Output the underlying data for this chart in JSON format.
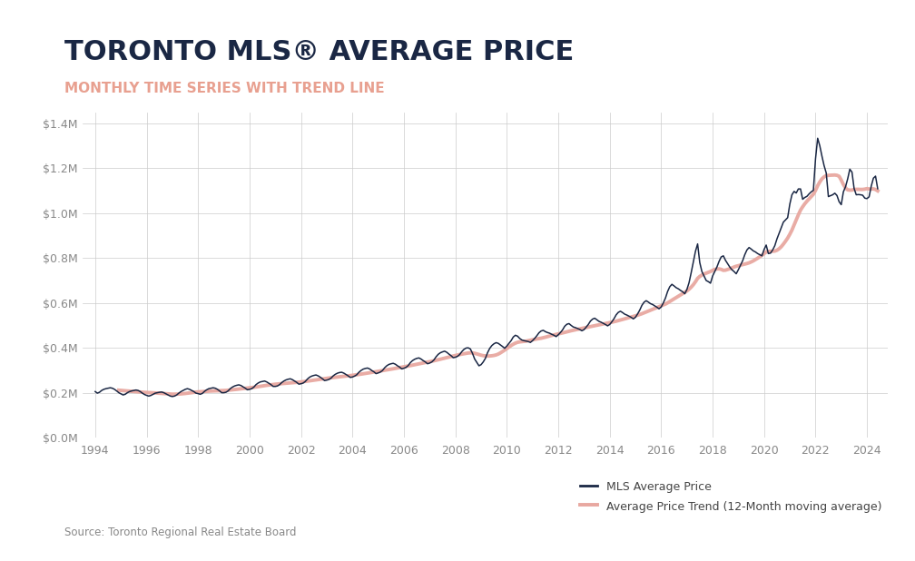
{
  "title": "TORONTO MLS® AVERAGE PRICE",
  "subtitle": "MONTHLY TIME SERIES WITH TREND LINE",
  "title_color": "#1a2744",
  "subtitle_color": "#e8a090",
  "background_color": "#ffffff",
  "line_color": "#1a2744",
  "trend_color": "#e8a8a0",
  "ytick_vals": [
    0,
    200000,
    400000,
    600000,
    800000,
    1000000,
    1200000,
    1400000
  ],
  "source_text": "Source: Toronto Regional Real Estate Board",
  "legend_label_1": "MLS Average Price",
  "legend_label_2": "Average Price Trend (12-Month moving average)",
  "monthly_data": [
    [
      1994.0,
      205000
    ],
    [
      1994.083,
      198000
    ],
    [
      1994.167,
      202000
    ],
    [
      1994.25,
      210000
    ],
    [
      1994.333,
      215000
    ],
    [
      1994.417,
      218000
    ],
    [
      1994.5,
      220000
    ],
    [
      1994.583,
      222000
    ],
    [
      1994.667,
      220000
    ],
    [
      1994.75,
      215000
    ],
    [
      1994.833,
      208000
    ],
    [
      1994.917,
      200000
    ],
    [
      1995.0,
      195000
    ],
    [
      1995.083,
      190000
    ],
    [
      1995.167,
      193000
    ],
    [
      1995.25,
      200000
    ],
    [
      1995.333,
      205000
    ],
    [
      1995.417,
      208000
    ],
    [
      1995.5,
      210000
    ],
    [
      1995.583,
      212000
    ],
    [
      1995.667,
      210000
    ],
    [
      1995.75,
      205000
    ],
    [
      1995.833,
      198000
    ],
    [
      1995.917,
      192000
    ],
    [
      1996.0,
      188000
    ],
    [
      1996.083,
      185000
    ],
    [
      1996.167,
      188000
    ],
    [
      1996.25,
      193000
    ],
    [
      1996.333,
      198000
    ],
    [
      1996.417,
      200000
    ],
    [
      1996.5,
      202000
    ],
    [
      1996.583,
      203000
    ],
    [
      1996.667,
      200000
    ],
    [
      1996.75,
      195000
    ],
    [
      1996.833,
      190000
    ],
    [
      1996.917,
      185000
    ],
    [
      1997.0,
      183000
    ],
    [
      1997.083,
      185000
    ],
    [
      1997.167,
      190000
    ],
    [
      1997.25,
      198000
    ],
    [
      1997.333,
      205000
    ],
    [
      1997.417,
      210000
    ],
    [
      1997.5,
      215000
    ],
    [
      1997.583,
      218000
    ],
    [
      1997.667,
      215000
    ],
    [
      1997.75,
      210000
    ],
    [
      1997.833,
      205000
    ],
    [
      1997.917,
      198000
    ],
    [
      1998.0,
      196000
    ],
    [
      1998.083,
      193000
    ],
    [
      1998.167,
      197000
    ],
    [
      1998.25,
      206000
    ],
    [
      1998.333,
      213000
    ],
    [
      1998.417,
      218000
    ],
    [
      1998.5,
      220000
    ],
    [
      1998.583,
      222000
    ],
    [
      1998.667,
      220000
    ],
    [
      1998.75,
      215000
    ],
    [
      1998.833,
      208000
    ],
    [
      1998.917,
      200000
    ],
    [
      1999.0,
      200000
    ],
    [
      1999.083,
      202000
    ],
    [
      1999.167,
      208000
    ],
    [
      1999.25,
      218000
    ],
    [
      1999.333,
      225000
    ],
    [
      1999.417,
      230000
    ],
    [
      1999.5,
      233000
    ],
    [
      1999.583,
      235000
    ],
    [
      1999.667,
      232000
    ],
    [
      1999.75,
      226000
    ],
    [
      1999.833,
      220000
    ],
    [
      1999.917,
      213000
    ],
    [
      2000.0,
      215000
    ],
    [
      2000.083,
      218000
    ],
    [
      2000.167,
      225000
    ],
    [
      2000.25,
      236000
    ],
    [
      2000.333,
      243000
    ],
    [
      2000.417,
      248000
    ],
    [
      2000.5,
      250000
    ],
    [
      2000.583,
      252000
    ],
    [
      2000.667,
      248000
    ],
    [
      2000.75,
      242000
    ],
    [
      2000.833,
      236000
    ],
    [
      2000.917,
      228000
    ],
    [
      2001.0,
      228000
    ],
    [
      2001.083,
      230000
    ],
    [
      2001.167,
      236000
    ],
    [
      2001.25,
      245000
    ],
    [
      2001.333,
      252000
    ],
    [
      2001.417,
      257000
    ],
    [
      2001.5,
      260000
    ],
    [
      2001.583,
      262000
    ],
    [
      2001.667,
      258000
    ],
    [
      2001.75,
      252000
    ],
    [
      2001.833,
      246000
    ],
    [
      2001.917,
      238000
    ],
    [
      2002.0,
      240000
    ],
    [
      2002.083,
      243000
    ],
    [
      2002.167,
      250000
    ],
    [
      2002.25,
      261000
    ],
    [
      2002.333,
      269000
    ],
    [
      2002.417,
      274000
    ],
    [
      2002.5,
      277000
    ],
    [
      2002.583,
      279000
    ],
    [
      2002.667,
      275000
    ],
    [
      2002.75,
      269000
    ],
    [
      2002.833,
      262000
    ],
    [
      2002.917,
      254000
    ],
    [
      2003.0,
      256000
    ],
    [
      2003.083,
      259000
    ],
    [
      2003.167,
      265000
    ],
    [
      2003.25,
      275000
    ],
    [
      2003.333,
      282000
    ],
    [
      2003.417,
      287000
    ],
    [
      2003.5,
      290000
    ],
    [
      2003.583,
      291000
    ],
    [
      2003.667,
      287000
    ],
    [
      2003.75,
      281000
    ],
    [
      2003.833,
      275000
    ],
    [
      2003.917,
      268000
    ],
    [
      2004.0,
      270000
    ],
    [
      2004.083,
      274000
    ],
    [
      2004.167,
      280000
    ],
    [
      2004.25,
      291000
    ],
    [
      2004.333,
      299000
    ],
    [
      2004.417,
      305000
    ],
    [
      2004.5,
      308000
    ],
    [
      2004.583,
      310000
    ],
    [
      2004.667,
      306000
    ],
    [
      2004.75,
      299000
    ],
    [
      2004.833,
      293000
    ],
    [
      2004.917,
      285000
    ],
    [
      2005.0,
      288000
    ],
    [
      2005.083,
      292000
    ],
    [
      2005.167,
      299000
    ],
    [
      2005.25,
      311000
    ],
    [
      2005.333,
      320000
    ],
    [
      2005.417,
      326000
    ],
    [
      2005.5,
      329000
    ],
    [
      2005.583,
      331000
    ],
    [
      2005.667,
      327000
    ],
    [
      2005.75,
      320000
    ],
    [
      2005.833,
      314000
    ],
    [
      2005.917,
      306000
    ],
    [
      2006.0,
      309000
    ],
    [
      2006.083,
      313000
    ],
    [
      2006.167,
      321000
    ],
    [
      2006.25,
      334000
    ],
    [
      2006.333,
      343000
    ],
    [
      2006.417,
      349000
    ],
    [
      2006.5,
      353000
    ],
    [
      2006.583,
      355000
    ],
    [
      2006.667,
      350000
    ],
    [
      2006.75,
      343000
    ],
    [
      2006.833,
      337000
    ],
    [
      2006.917,
      329000
    ],
    [
      2007.0,
      332000
    ],
    [
      2007.083,
      337000
    ],
    [
      2007.167,
      346000
    ],
    [
      2007.25,
      360000
    ],
    [
      2007.333,
      371000
    ],
    [
      2007.417,
      378000
    ],
    [
      2007.5,
      382000
    ],
    [
      2007.583,
      385000
    ],
    [
      2007.667,
      380000
    ],
    [
      2007.75,
      372000
    ],
    [
      2007.833,
      365000
    ],
    [
      2007.917,
      356000
    ],
    [
      2008.0,
      358000
    ],
    [
      2008.083,
      362000
    ],
    [
      2008.167,
      370000
    ],
    [
      2008.25,
      383000
    ],
    [
      2008.333,
      393000
    ],
    [
      2008.417,
      399000
    ],
    [
      2008.5,
      400000
    ],
    [
      2008.583,
      395000
    ],
    [
      2008.667,
      375000
    ],
    [
      2008.75,
      350000
    ],
    [
      2008.833,
      335000
    ],
    [
      2008.917,
      320000
    ],
    [
      2009.0,
      325000
    ],
    [
      2009.083,
      337000
    ],
    [
      2009.167,
      353000
    ],
    [
      2009.25,
      378000
    ],
    [
      2009.333,
      397000
    ],
    [
      2009.417,
      410000
    ],
    [
      2009.5,
      418000
    ],
    [
      2009.583,
      423000
    ],
    [
      2009.667,
      420000
    ],
    [
      2009.75,
      413000
    ],
    [
      2009.833,
      406000
    ],
    [
      2009.917,
      398000
    ],
    [
      2010.0,
      408000
    ],
    [
      2010.083,
      420000
    ],
    [
      2010.167,
      432000
    ],
    [
      2010.25,
      448000
    ],
    [
      2010.333,
      456000
    ],
    [
      2010.417,
      452000
    ],
    [
      2010.5,
      442000
    ],
    [
      2010.583,
      435000
    ],
    [
      2010.667,
      432000
    ],
    [
      2010.75,
      430000
    ],
    [
      2010.833,
      428000
    ],
    [
      2010.917,
      424000
    ],
    [
      2011.0,
      432000
    ],
    [
      2011.083,
      442000
    ],
    [
      2011.167,
      454000
    ],
    [
      2011.25,
      467000
    ],
    [
      2011.333,
      475000
    ],
    [
      2011.417,
      478000
    ],
    [
      2011.5,
      472000
    ],
    [
      2011.583,
      468000
    ],
    [
      2011.667,
      465000
    ],
    [
      2011.75,
      460000
    ],
    [
      2011.833,
      456000
    ],
    [
      2011.917,
      450000
    ],
    [
      2012.0,
      458000
    ],
    [
      2012.083,
      468000
    ],
    [
      2012.167,
      480000
    ],
    [
      2012.25,
      496000
    ],
    [
      2012.333,
      505000
    ],
    [
      2012.417,
      508000
    ],
    [
      2012.5,
      500000
    ],
    [
      2012.583,
      493000
    ],
    [
      2012.667,
      490000
    ],
    [
      2012.75,
      486000
    ],
    [
      2012.833,
      482000
    ],
    [
      2012.917,
      476000
    ],
    [
      2013.0,
      481000
    ],
    [
      2013.083,
      492000
    ],
    [
      2013.167,
      504000
    ],
    [
      2013.25,
      519000
    ],
    [
      2013.333,
      528000
    ],
    [
      2013.417,
      532000
    ],
    [
      2013.5,
      525000
    ],
    [
      2013.583,
      518000
    ],
    [
      2013.667,
      514000
    ],
    [
      2013.75,
      509000
    ],
    [
      2013.833,
      504000
    ],
    [
      2013.917,
      498000
    ],
    [
      2014.0,
      504000
    ],
    [
      2014.083,
      516000
    ],
    [
      2014.167,
      530000
    ],
    [
      2014.25,
      547000
    ],
    [
      2014.333,
      558000
    ],
    [
      2014.417,
      563000
    ],
    [
      2014.5,
      557000
    ],
    [
      2014.583,
      550000
    ],
    [
      2014.667,
      546000
    ],
    [
      2014.75,
      541000
    ],
    [
      2014.833,
      536000
    ],
    [
      2014.917,
      529000
    ],
    [
      2015.0,
      536000
    ],
    [
      2015.083,
      551000
    ],
    [
      2015.167,
      568000
    ],
    [
      2015.25,
      589000
    ],
    [
      2015.333,
      603000
    ],
    [
      2015.417,
      610000
    ],
    [
      2015.5,
      604000
    ],
    [
      2015.583,
      597000
    ],
    [
      2015.667,
      593000
    ],
    [
      2015.75,
      587000
    ],
    [
      2015.833,
      581000
    ],
    [
      2015.917,
      574000
    ],
    [
      2016.0,
      582000
    ],
    [
      2016.083,
      600000
    ],
    [
      2016.167,
      622000
    ],
    [
      2016.25,
      651000
    ],
    [
      2016.333,
      672000
    ],
    [
      2016.417,
      683000
    ],
    [
      2016.5,
      676000
    ],
    [
      2016.583,
      668000
    ],
    [
      2016.667,
      663000
    ],
    [
      2016.75,
      656000
    ],
    [
      2016.833,
      650000
    ],
    [
      2016.917,
      641000
    ],
    [
      2017.0,
      660000
    ],
    [
      2017.083,
      690000
    ],
    [
      2017.167,
      735000
    ],
    [
      2017.25,
      782000
    ],
    [
      2017.333,
      830000
    ],
    [
      2017.417,
      863000
    ],
    [
      2017.5,
      780000
    ],
    [
      2017.583,
      740000
    ],
    [
      2017.667,
      720000
    ],
    [
      2017.75,
      700000
    ],
    [
      2017.833,
      695000
    ],
    [
      2017.917,
      688000
    ],
    [
      2018.0,
      720000
    ],
    [
      2018.083,
      740000
    ],
    [
      2018.167,
      760000
    ],
    [
      2018.25,
      785000
    ],
    [
      2018.333,
      805000
    ],
    [
      2018.417,
      810000
    ],
    [
      2018.5,
      790000
    ],
    [
      2018.583,
      775000
    ],
    [
      2018.667,
      760000
    ],
    [
      2018.75,
      748000
    ],
    [
      2018.833,
      740000
    ],
    [
      2018.917,
      730000
    ],
    [
      2019.0,
      748000
    ],
    [
      2019.083,
      768000
    ],
    [
      2019.167,
      788000
    ],
    [
      2019.25,
      815000
    ],
    [
      2019.333,
      836000
    ],
    [
      2019.417,
      847000
    ],
    [
      2019.5,
      840000
    ],
    [
      2019.583,
      832000
    ],
    [
      2019.667,
      827000
    ],
    [
      2019.75,
      820000
    ],
    [
      2019.833,
      815000
    ],
    [
      2019.917,
      810000
    ],
    [
      2020.0,
      838000
    ],
    [
      2020.083,
      858000
    ],
    [
      2020.167,
      820000
    ],
    [
      2020.25,
      822000
    ],
    [
      2020.333,
      836000
    ],
    [
      2020.417,
      855000
    ],
    [
      2020.5,
      885000
    ],
    [
      2020.583,
      910000
    ],
    [
      2020.667,
      935000
    ],
    [
      2020.75,
      960000
    ],
    [
      2020.833,
      970000
    ],
    [
      2020.917,
      980000
    ],
    [
      2021.0,
      1040000
    ],
    [
      2021.083,
      1082000
    ],
    [
      2021.167,
      1097000
    ],
    [
      2021.25,
      1090000
    ],
    [
      2021.333,
      1108000
    ],
    [
      2021.417,
      1108000
    ],
    [
      2021.5,
      1062000
    ],
    [
      2021.583,
      1070000
    ],
    [
      2021.667,
      1075000
    ],
    [
      2021.75,
      1086000
    ],
    [
      2021.833,
      1095000
    ],
    [
      2021.917,
      1102000
    ],
    [
      2022.0,
      1242000
    ],
    [
      2022.083,
      1334000
    ],
    [
      2022.167,
      1300000
    ],
    [
      2022.25,
      1254000
    ],
    [
      2022.333,
      1212000
    ],
    [
      2022.417,
      1179000
    ],
    [
      2022.5,
      1074000
    ],
    [
      2022.583,
      1078000
    ],
    [
      2022.667,
      1082000
    ],
    [
      2022.75,
      1089000
    ],
    [
      2022.833,
      1079000
    ],
    [
      2022.917,
      1051000
    ],
    [
      2023.0,
      1038000
    ],
    [
      2023.083,
      1095000
    ],
    [
      2023.167,
      1118000
    ],
    [
      2023.25,
      1153000
    ],
    [
      2023.333,
      1196000
    ],
    [
      2023.417,
      1183000
    ],
    [
      2023.5,
      1110000
    ],
    [
      2023.583,
      1082000
    ],
    [
      2023.667,
      1083000
    ],
    [
      2023.75,
      1082000
    ],
    [
      2023.833,
      1080000
    ],
    [
      2023.917,
      1067000
    ],
    [
      2024.0,
      1065000
    ],
    [
      2024.083,
      1073000
    ],
    [
      2024.167,
      1121000
    ],
    [
      2024.25,
      1156000
    ],
    [
      2024.333,
      1165000
    ],
    [
      2024.417,
      1109000
    ]
  ]
}
